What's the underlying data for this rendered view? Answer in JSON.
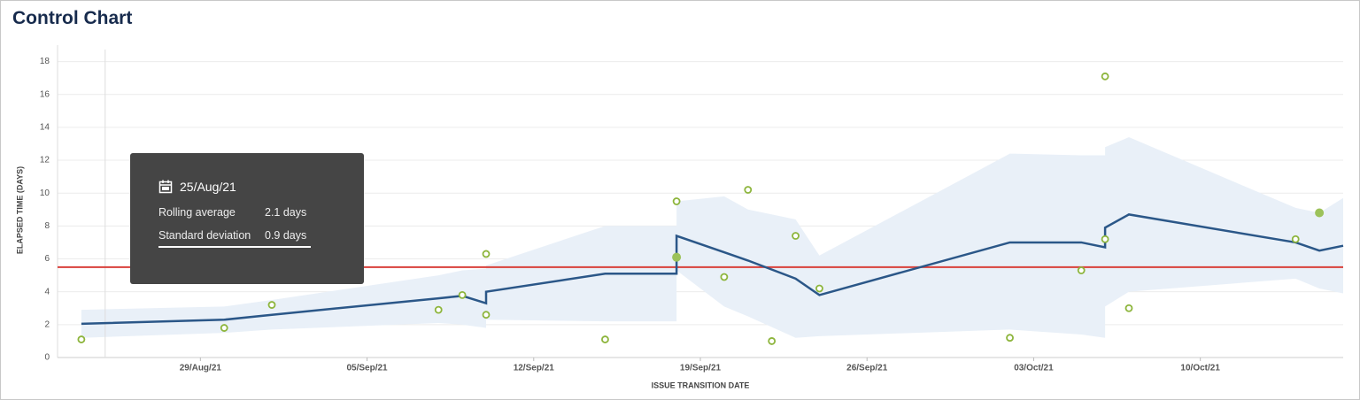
{
  "chart_data": {
    "type": "control",
    "title": "Control Chart",
    "y_label": "ELAPSED TIME (DAYS)",
    "x_label": "ISSUE TRANSITION DATE",
    "xlim": [
      "2021-08-23",
      "2021-10-16"
    ],
    "xticks": [
      {
        "value": "2021-08-29",
        "label": "29/Aug/21"
      },
      {
        "value": "2021-09-05",
        "label": "05/Sep/21"
      },
      {
        "value": "2021-09-12",
        "label": "12/Sep/21"
      },
      {
        "value": "2021-09-19",
        "label": "19/Sep/21"
      },
      {
        "value": "2021-09-26",
        "label": "26/Sep/21"
      },
      {
        "value": "2021-10-03",
        "label": "03/Oct/21"
      },
      {
        "value": "2021-10-10",
        "label": "10/Oct/21"
      }
    ],
    "ylim": [
      0,
      19
    ],
    "yticks": [
      0,
      2,
      4,
      6,
      8,
      10,
      12,
      14,
      16,
      18
    ],
    "grid": true,
    "band": {
      "color": "#e9f0f8",
      "x": [
        "2021-08-24",
        "2021-08-30",
        "2021-09-01",
        "2021-09-08",
        "2021-09-09",
        "2021-09-10",
        "2021-09-10",
        "2021-09-15",
        "2021-09-18",
        "2021-09-18",
        "2021-09-20",
        "2021-09-21",
        "2021-09-23",
        "2021-09-24",
        "2021-10-02",
        "2021-10-05",
        "2021-10-06",
        "2021-10-06",
        "2021-10-07",
        "2021-10-14",
        "2021-10-15",
        "2021-10-16"
      ],
      "upper": [
        2.9,
        3.1,
        3.5,
        5.0,
        5.3,
        5.4,
        5.6,
        8.0,
        8.0,
        9.5,
        9.8,
        9.0,
        8.4,
        6.2,
        12.4,
        12.3,
        12.3,
        12.8,
        13.4,
        9.1,
        8.8,
        9.7
      ],
      "lower": [
        1.2,
        1.5,
        1.7,
        2.1,
        2.0,
        1.8,
        2.3,
        2.2,
        2.2,
        5.3,
        3.1,
        2.5,
        1.2,
        1.3,
        1.7,
        1.4,
        1.2,
        3.1,
        4.0,
        4.8,
        4.2,
        3.9
      ]
    },
    "rolling_average": {
      "color": "#2b5788",
      "x": [
        "2021-08-24",
        "2021-08-30",
        "2021-09-01",
        "2021-09-08",
        "2021-09-09",
        "2021-09-10",
        "2021-09-10",
        "2021-09-15",
        "2021-09-18",
        "2021-09-18",
        "2021-09-20",
        "2021-09-21",
        "2021-09-23",
        "2021-09-24",
        "2021-10-02",
        "2021-10-05",
        "2021-10-06",
        "2021-10-06",
        "2021-10-07",
        "2021-10-14",
        "2021-10-15",
        "2021-10-16"
      ],
      "values": [
        2.05,
        2.3,
        2.6,
        3.6,
        3.75,
        3.3,
        4.0,
        5.1,
        5.1,
        7.4,
        6.4,
        5.9,
        4.8,
        3.8,
        7.0,
        7.0,
        6.7,
        7.9,
        8.7,
        7.0,
        6.5,
        6.8
      ]
    },
    "average_line": {
      "color": "#d9413b",
      "value": 5.5
    },
    "issues": {
      "color": "#8db53c",
      "x": [
        "2021-08-24",
        "2021-08-30",
        "2021-09-01",
        "2021-09-08",
        "2021-09-09",
        "2021-09-10",
        "2021-09-10",
        "2021-09-15",
        "2021-09-18",
        "2021-09-20",
        "2021-09-21",
        "2021-09-22",
        "2021-09-23",
        "2021-09-24",
        "2021-10-02",
        "2021-10-05",
        "2021-10-06",
        "2021-10-06",
        "2021-10-07",
        "2021-10-14"
      ],
      "values": [
        1.1,
        1.8,
        3.2,
        2.9,
        3.8,
        6.3,
        2.6,
        1.1,
        9.5,
        4.9,
        10.2,
        1.0,
        7.4,
        4.2,
        1.2,
        5.3,
        17.1,
        7.2,
        3.0,
        7.2
      ]
    },
    "clusters": {
      "color": "#9cc25a",
      "x": [
        "2021-09-18",
        "2021-10-15"
      ],
      "values": [
        6.1,
        8.8
      ]
    },
    "tooltip": {
      "x": "2021-08-25",
      "date": "25/Aug/21",
      "rows": [
        {
          "label": "Rolling average",
          "value": "2.1 days"
        },
        {
          "label": "Standard deviation",
          "value": "0.9 days"
        }
      ]
    }
  }
}
